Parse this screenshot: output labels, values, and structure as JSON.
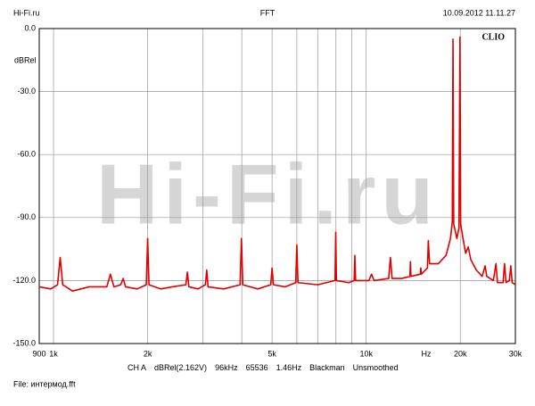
{
  "chart_data": {
    "type": "line",
    "header_left": "Hi-Fi.ru",
    "title": "FFT",
    "timestamp": "10.09.2012 11.11.27",
    "ylabel": "dBRel",
    "xlabel": "Hz",
    "brand": "CLIO",
    "watermark": "Hi-Fi.ru",
    "footer": [
      "CH A",
      "dBRel(2.162V)",
      "96kHz",
      "65536",
      "1.46Hz",
      "Blackman",
      "Unsmoothed"
    ],
    "file": "File: интермод.fft",
    "xscale": "log",
    "grid": true,
    "xlim": [
      900,
      30000
    ],
    "xticks": [
      900,
      {
        "value": 1000,
        "label": "1k"
      },
      {
        "value": 2000,
        "label": "2k"
      },
      {
        "value": 5000,
        "label": "5k"
      },
      {
        "value": 10000,
        "label": "10k"
      },
      {
        "value": 20000,
        "label": "20k"
      },
      {
        "value": 30000,
        "label": "30k"
      }
    ],
    "x_minor_ticks": [
      3000,
      4000,
      6000,
      7000,
      8000,
      9000
    ],
    "ylim": [
      -150,
      0
    ],
    "yticks": [
      {
        "value": -150,
        "label": "-150.0"
      },
      {
        "value": -120,
        "label": "-120.0"
      },
      {
        "value": -90,
        "label": "-90.0"
      },
      {
        "value": -60,
        "label": "-60.0"
      },
      {
        "value": -30,
        "label": "-30.0"
      },
      {
        "value": 0,
        "label": "0.0"
      }
    ],
    "x": [
      900,
      980,
      1030,
      1050,
      1070,
      1150,
      1300,
      1480,
      1520,
      1560,
      1640,
      1670,
      1700,
      1850,
      1980,
      2000,
      2020,
      2200,
      2400,
      2650,
      2680,
      2710,
      2900,
      3060,
      3090,
      3120,
      3500,
      3950,
      3990,
      4030,
      4500,
      4950,
      5000,
      5050,
      5500,
      5950,
      6000,
      6050,
      7000,
      7950,
      7990,
      8030,
      8800,
      9150,
      9200,
      9250,
      10200,
      10400,
      10600,
      11800,
      11950,
      12100,
      13000,
      13800,
      13850,
      13900,
      14900,
      14950,
      15000,
      15700,
      15800,
      15950,
      17000,
      18000,
      18600,
      18850,
      18950,
      19050,
      19500,
      19800,
      19950,
      20050,
      20400,
      20800,
      21200,
      21600,
      22500,
      23500,
      24000,
      24300,
      25500,
      26000,
      26300,
      27400,
      27700,
      28000,
      28700,
      29000,
      29300,
      30000
    ],
    "series": [
      {
        "name": "CH A",
        "color": "#e00000",
        "values": [
          -123,
          -124,
          -122,
          -109,
          -122,
          -125,
          -123,
          -123,
          -117,
          -123,
          -122,
          -119,
          -123,
          -124,
          -122,
          -100,
          -122,
          -124,
          -123,
          -122,
          -116,
          -123,
          -124,
          -122,
          -115,
          -123,
          -124,
          -122,
          -100,
          -122,
          -124,
          -122,
          -114,
          -122,
          -123,
          -121,
          -103,
          -121,
          -122,
          -120,
          -97,
          -120,
          -121,
          -120,
          -108,
          -120,
          -120,
          -117,
          -120,
          -119,
          -109,
          -119,
          -119,
          -118,
          -111,
          -118,
          -117,
          -114,
          -117,
          -114,
          -101,
          -112,
          -112,
          -108,
          -100,
          -92,
          -5,
          -93,
          -100,
          -95,
          -4,
          -93,
          -100,
          -107,
          -104,
          -110,
          -115,
          -118,
          -113,
          -118,
          -120,
          -112,
          -121,
          -121,
          -112,
          -121,
          -120,
          -113,
          -121,
          -122
        ]
      }
    ]
  }
}
